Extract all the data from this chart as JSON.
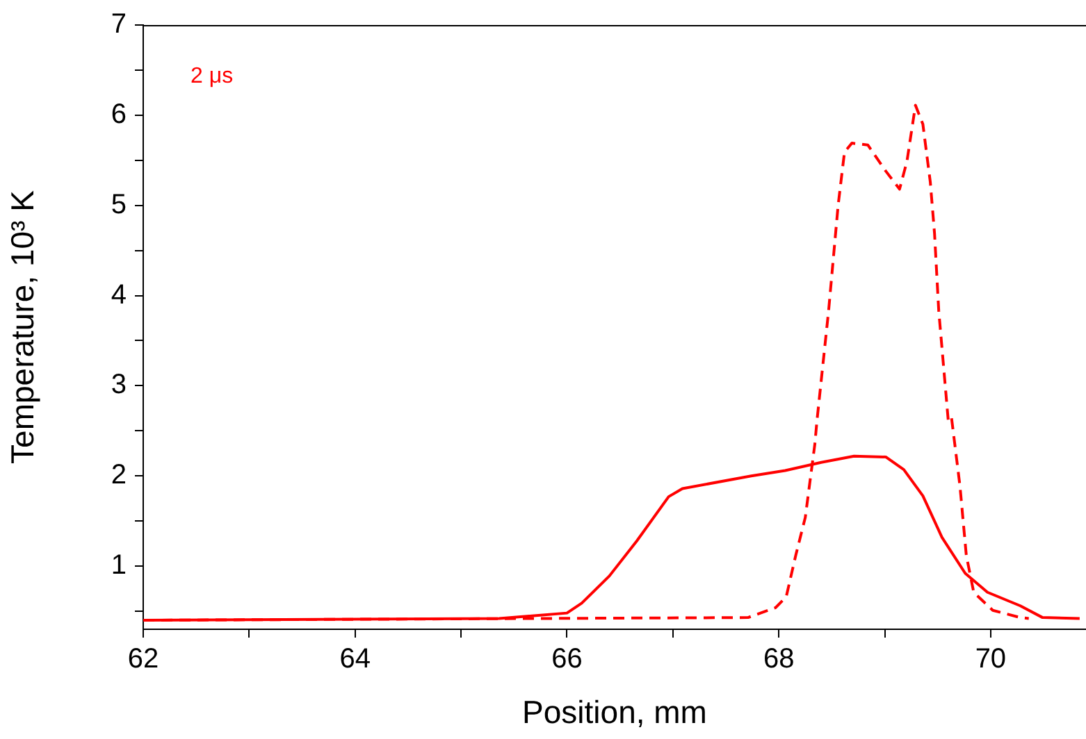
{
  "chart_data": {
    "type": "line",
    "xlabel": "Position, mm",
    "ylabel": "Temperature, 10³ K",
    "annotations": [
      "2 μs"
    ],
    "xlim": [
      62,
      70.9
    ],
    "ylim": [
      0.3,
      7
    ],
    "xticks": [
      62,
      {
        "value": 63,
        "label": null
      },
      64,
      {
        "value": 65,
        "label": null
      },
      66,
      {
        "value": 67,
        "label": null
      },
      68,
      {
        "value": 69,
        "label": null
      },
      70
    ],
    "yticks": [
      {
        "value": 0.5,
        "label": null
      },
      1,
      {
        "value": 1.5,
        "label": null
      },
      2,
      {
        "value": 2.5,
        "label": null
      },
      3,
      {
        "value": 3.5,
        "label": null
      },
      4,
      {
        "value": 4.5,
        "label": null
      },
      5,
      {
        "value": 5.5,
        "label": null
      },
      6,
      {
        "value": 6.5,
        "label": null
      },
      7
    ],
    "grid": false,
    "legend": false,
    "marker": "none",
    "series": [
      {
        "color": "#ff0000",
        "line_style": "solid",
        "x": [
          62,
          65.36,
          66.0,
          66.14,
          66.4,
          66.66,
          66.96,
          67.09,
          67.74,
          68.06,
          68.4,
          68.71,
          69.01,
          69.18,
          69.36,
          69.54,
          69.76,
          69.97,
          70.28,
          70.49,
          70.84
        ],
        "values": [
          0.4,
          0.42,
          0.48,
          0.59,
          0.89,
          1.28,
          1.77,
          1.86,
          2.0,
          2.06,
          2.15,
          2.22,
          2.21,
          2.07,
          1.78,
          1.32,
          0.92,
          0.71,
          0.56,
          0.43,
          0.42
        ]
      },
      {
        "color": "#ff0000",
        "line_style": "dashed",
        "x": [
          62,
          67.71,
          67.97,
          68.07,
          68.16,
          68.25,
          68.34,
          68.36,
          68.47,
          68.56,
          68.62,
          68.69,
          68.84,
          69.01,
          69.14,
          69.21,
          69.29,
          69.36,
          69.43,
          69.47,
          69.51,
          69.6,
          69.63,
          69.71,
          69.77,
          69.84,
          70.02,
          70.28,
          70.36
        ],
        "values": [
          0.4,
          0.43,
          0.54,
          0.66,
          1.12,
          1.54,
          2.35,
          2.61,
          3.83,
          5.0,
          5.59,
          5.69,
          5.67,
          5.38,
          5.18,
          5.49,
          6.11,
          5.9,
          5.26,
          4.69,
          3.83,
          2.61,
          2.65,
          1.89,
          1.12,
          0.71,
          0.51,
          0.43,
          0.42
        ]
      }
    ]
  }
}
